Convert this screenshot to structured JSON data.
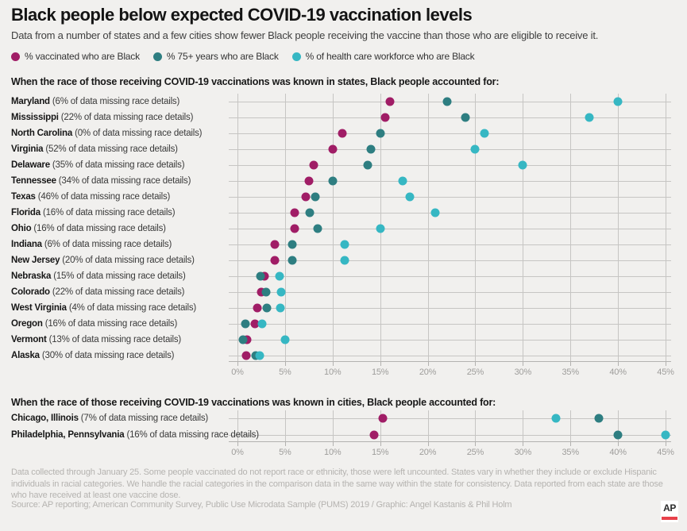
{
  "page": {
    "title": "Black people below expected COVID-19 vaccination levels",
    "subtitle": "Data from a number of states and a few cities show fewer Black people receiving the vaccine than those who are eligible to receive it.",
    "background": "#f1f0ee"
  },
  "legend": [
    {
      "label": "% vaccinated who are Black",
      "color": "#a01d66"
    },
    {
      "label": "% 75+ years who are Black",
      "color": "#2e7e81"
    },
    {
      "label": "% of health care workforce who are Black",
      "color": "#36b7c3"
    }
  ],
  "chart_data": [
    {
      "type": "scatter",
      "title": "When the race of those receiving COVID-19 vaccinations was known in states, Black people accounted for:",
      "xlabel": "",
      "ylabel": "",
      "xlim": [
        0,
        45
      ],
      "x_ticks": [
        "0%",
        "5%",
        "10%",
        "15%",
        "20%",
        "25%",
        "30%",
        "35%",
        "40%",
        "45%"
      ],
      "grid": true,
      "legend_position": "top",
      "series": [
        "% vaccinated who are Black",
        "% 75+ years who are Black",
        "% of health care workforce who are Black"
      ],
      "rows": [
        {
          "label": "Maryland",
          "note": "(6% of data missing race details)",
          "values": [
            16,
            22,
            40
          ]
        },
        {
          "label": "Mississippi",
          "note": "(22% of data missing race details)",
          "values": [
            15.5,
            24,
            37
          ]
        },
        {
          "label": "North Carolina",
          "note": "(0% of data missing race details)",
          "values": [
            11,
            15,
            26
          ]
        },
        {
          "label": "Virginia",
          "note": "(52% of data missing race details)",
          "values": [
            10,
            14,
            25
          ]
        },
        {
          "label": "Delaware",
          "note": "(35% of data missing race details)",
          "values": [
            8,
            13.7,
            30
          ]
        },
        {
          "label": "Tennessee",
          "note": "(34% of data missing race details)",
          "values": [
            7.5,
            10,
            17.4
          ]
        },
        {
          "label": "Texas",
          "note": "(46% of data missing race details)",
          "values": [
            7.2,
            8.2,
            18.1
          ]
        },
        {
          "label": "Florida",
          "note": "(16% of data missing race details)",
          "values": [
            6,
            7.6,
            20.8
          ]
        },
        {
          "label": "Ohio",
          "note": "(16% of data missing race details)",
          "values": [
            6,
            8.4,
            15
          ]
        },
        {
          "label": "Indiana",
          "note": "(6% of data missing race details)",
          "values": [
            3.9,
            5.8,
            11.3
          ]
        },
        {
          "label": "New Jersey",
          "note": "(20% of data missing race details)",
          "values": [
            3.9,
            5.8,
            11.3
          ]
        },
        {
          "label": "Nebraska",
          "note": "(15% of data missing race details)",
          "values": [
            2.8,
            2.4,
            4.4
          ]
        },
        {
          "label": "Colorado",
          "note": "(22% of data missing race details)",
          "values": [
            2.5,
            3,
            4.6
          ]
        },
        {
          "label": "West Virginia",
          "note": "(4% of data missing race details)",
          "values": [
            2.1,
            3.1,
            4.5
          ]
        },
        {
          "label": "Oregon",
          "note": "(16% of data missing race details)",
          "values": [
            1.8,
            0.8,
            2.6
          ]
        },
        {
          "label": "Vermont",
          "note": "(13% of data missing race details)",
          "values": [
            1,
            0.6,
            5
          ]
        },
        {
          "label": "Alaska",
          "note": "(30% of data missing race details)",
          "values": [
            0.9,
            1.9,
            2.3
          ]
        }
      ]
    },
    {
      "type": "scatter",
      "title": "When the race of those receiving COVID-19 vaccinations was known in cities, Black people accounted for:",
      "xlabel": "",
      "ylabel": "",
      "xlim": [
        0,
        45
      ],
      "x_ticks": [
        "0%",
        "5%",
        "10%",
        "15%",
        "20%",
        "25%",
        "30%",
        "35%",
        "40%",
        "45%"
      ],
      "grid": true,
      "legend_position": "top",
      "series": [
        "% vaccinated who are Black",
        "% 75+ years who are Black",
        "% of health care workforce who are Black"
      ],
      "rows": [
        {
          "label": "Chicago, Illinois",
          "note": "(7% of data missing race details)",
          "values": [
            15.3,
            38,
            33.5
          ]
        },
        {
          "label": "Philadelphia, Pennsylvania",
          "note": "(16% of data missing race details)",
          "values": [
            14.4,
            40,
            45
          ]
        }
      ]
    }
  ],
  "footer": {
    "notes": "Data collected through January 25. Some people vaccinated do not report race or ethnicity, those were left uncounted. States vary in whether they include or exclude Hispanic individuals in racial categories. We handle the racial categories in the comparison data in the same way within the state for consistency. Data reported from each state are those who have received at least one vaccine dose.",
    "source": "Source: AP reporting; American Community Survey, Public Use Microdata Sample (PUMS) 2019 / Graphic: Angel Kastanis & Phil Holm",
    "logo_text": "AP"
  }
}
